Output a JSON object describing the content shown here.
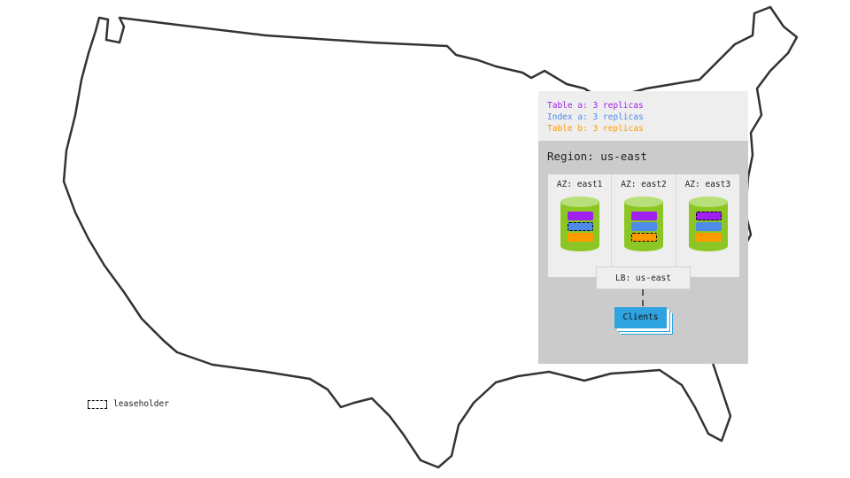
{
  "legend": [
    {
      "text": "Table a: 3 replicas",
      "color": "#a020f0"
    },
    {
      "text": "Index a: 3 replicas",
      "color": "#4f8be8"
    },
    {
      "text": "Table b: 3 replicas",
      "color": "#ff9a00"
    }
  ],
  "region": "Region: us-east",
  "azs": [
    {
      "label": "AZ: east1",
      "leaseholder": "index-a"
    },
    {
      "label": "AZ: east2",
      "leaseholder": "table-b"
    },
    {
      "label": "AZ: east3",
      "leaseholder": "table-a"
    }
  ],
  "lb": "LB: us-east",
  "clients": "Clients",
  "leaseholder_key": "leaseholder",
  "colors": {
    "cylinder": "#8cc625",
    "cylinder_top": "#b8e07a",
    "clients": "#2ea3df"
  }
}
